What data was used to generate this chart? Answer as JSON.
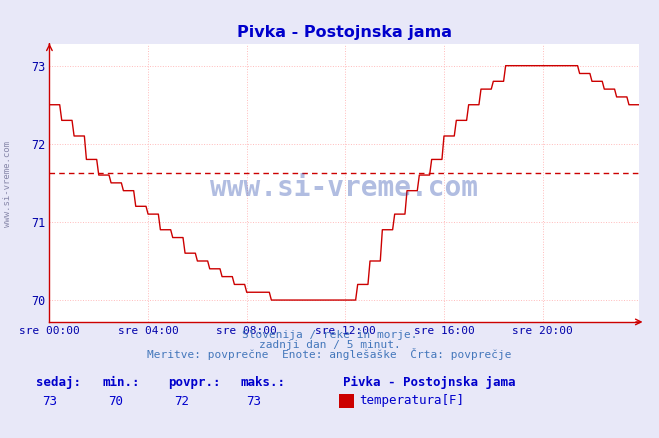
{
  "title": "Pivka - Postojnska jama",
  "xlabel_ticks": [
    "sre 00:00",
    "sre 04:00",
    "sre 08:00",
    "sre 12:00",
    "sre 16:00",
    "sre 20:00"
  ],
  "ylim": [
    69.72,
    73.28
  ],
  "xlim": [
    0,
    287
  ],
  "yticks": [
    70,
    71,
    72,
    73
  ],
  "xtick_positions": [
    0,
    48,
    96,
    144,
    192,
    240
  ],
  "avg_line_y": 71.63,
  "line_color": "#cc0000",
  "avg_line_color": "#cc0000",
  "grid_color": "#ffbbbb",
  "bg_color": "#e8e8f8",
  "plot_bg_color": "#ffffff",
  "title_color": "#0000cc",
  "axis_color": "#cc0000",
  "tick_color": "#0000aa",
  "watermark_color": "#2244aa",
  "footer_line1": "Slovenija / reke in morje.",
  "footer_line2": "zadnji dan / 5 minut.",
  "footer_line3": "Meritve: povprečne  Enote: anglešaške  Črta: povprečje",
  "footer_color": "#4477bb",
  "stat_labels": [
    "sedaj:",
    "min.:",
    "povpr.:",
    "maks.:"
  ],
  "stat_values": [
    "73",
    "70",
    "72",
    "73"
  ],
  "stat_color": "#0000cc",
  "legend_title": "Pivka - Postojnska jama",
  "legend_label": "temperatura[F]",
  "legend_color": "#cc0000",
  "watermark_text": "www.si-vreme.com",
  "sidebar_text": "www.si-vreme.com"
}
